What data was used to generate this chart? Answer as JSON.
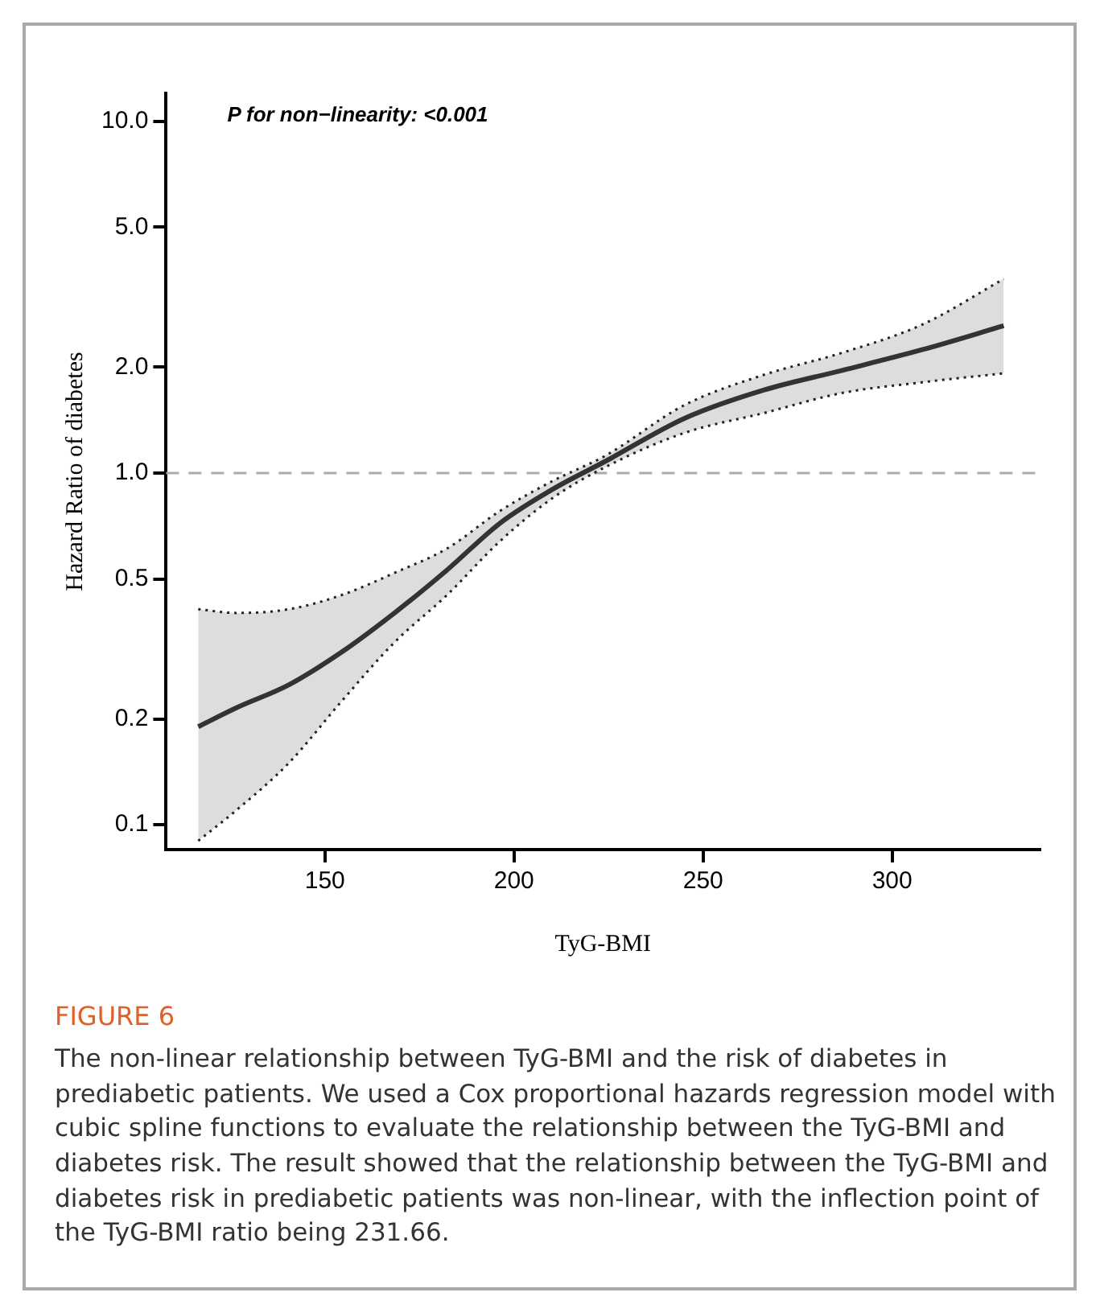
{
  "chart_data": {
    "type": "line",
    "xlabel": "TyG-BMI",
    "ylabel": "Hazard Ratio of diabetes",
    "annotations": [
      {
        "text": "P for non−linearity: <0.001"
      },
      "FIGURE 6",
      "The non-linear relationship between TyG-BMI and the risk of diabetes in prediabetic patients. We used a Cox proportional hazards regression model with cubic spline functions to evaluate the relationship between the TyG-BMI and diabetes risk. The result showed that the relationship between the TyG-BMI and diabetes risk in prediabetic patients was non-linear, with the inflection point of the TyG-BMI ratio being 231.66."
    ],
    "x": [
      116.5,
      126.6,
      140.5,
      154.5,
      168.4,
      182.3,
      196.3,
      210.3,
      224.2,
      245.1,
      266,
      287,
      307.9,
      329.5
    ],
    "series": [
      {
        "color": "#333333",
        "values": [
          0.19,
          0.215,
          0.25,
          0.31,
          0.4,
          0.53,
          0.72,
          0.9,
          1.08,
          1.43,
          1.72,
          1.96,
          2.24,
          2.62
        ],
        "lower": [
          0.09,
          0.11,
          0.15,
          0.225,
          0.33,
          0.45,
          0.64,
          0.85,
          1.04,
          1.3,
          1.48,
          1.69,
          1.81,
          1.92
        ],
        "upper": [
          0.41,
          0.4,
          0.41,
          0.45,
          0.52,
          0.61,
          0.78,
          0.95,
          1.12,
          1.56,
          1.9,
          2.2,
          2.64,
          3.56
        ]
      },
      {
        "color": "#222222",
        "line_style": "dotted",
        "values": [
          0.09,
          0.11,
          0.15,
          0.225,
          0.33,
          0.45,
          0.64,
          0.85,
          1.04,
          1.3,
          1.48,
          1.69,
          1.81,
          1.92
        ]
      },
      {
        "color": "#222222",
        "line_style": "dotted",
        "values": [
          0.41,
          0.4,
          0.41,
          0.45,
          0.52,
          0.61,
          0.78,
          0.95,
          1.12,
          1.56,
          1.9,
          2.2,
          2.64,
          3.56
        ]
      }
    ],
    "log": "y",
    "xlim": [
      108,
      339
    ],
    "xticks": [
      150,
      200,
      250,
      300
    ],
    "ylim": [
      0.085,
      12
    ],
    "yticks": [
      {
        "value": 0.1,
        "label": "0.1"
      },
      {
        "value": 0.2,
        "label": "0.2"
      },
      {
        "value": 0.5,
        "label": "0.5"
      },
      {
        "value": 1,
        "label": "1.0"
      },
      {
        "value": 2,
        "label": "2.0"
      },
      {
        "value": 5,
        "label": "5.0"
      },
      {
        "value": 10,
        "label": "10.0"
      }
    ],
    "ref_lines": [
      {
        "axis": "y",
        "value": 1,
        "color": "#aaaaaa",
        "line_style": "dashed"
      }
    ],
    "grid": false,
    "legend": false,
    "marker": "none",
    "line_style": "solid"
  }
}
